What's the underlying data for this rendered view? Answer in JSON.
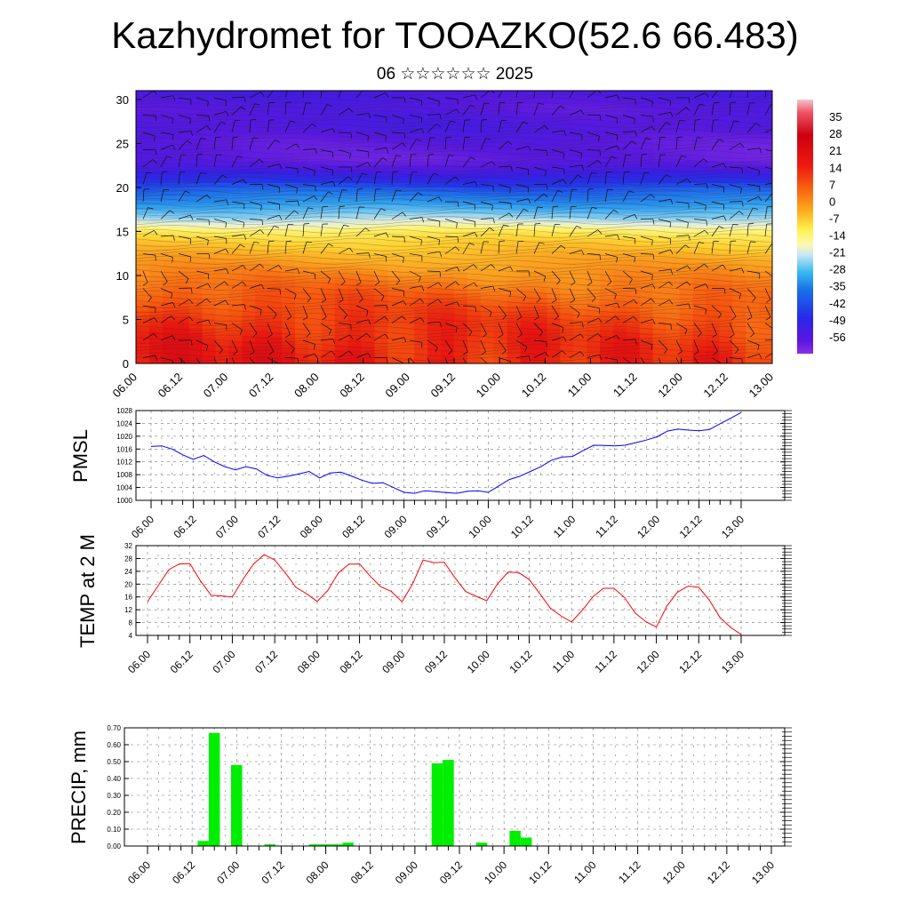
{
  "header": {
    "title": "Kazhydromet for TOOAZKO(52.6 66.483)",
    "subtitle": "06 ☆☆☆☆☆☆ 2025"
  },
  "time_labels": [
    "06.00",
    "06.12",
    "07.00",
    "07.12",
    "08.00",
    "08.12",
    "09.00",
    "09.12",
    "10.00",
    "10.12",
    "11.00",
    "11.12",
    "12.00",
    "12.12",
    "13.00"
  ],
  "chart_data": [
    {
      "type": "heatmap",
      "title": "",
      "xlabel": "",
      "ylabel": "",
      "x_tick_labels": [
        "06.00",
        "06.12",
        "07.00",
        "07.12",
        "08.00",
        "08.12",
        "09.00",
        "09.12",
        "10.00",
        "10.12",
        "11.00",
        "11.12",
        "12.00",
        "12.12",
        "13.00"
      ],
      "ylim": [
        0,
        31
      ],
      "y_ticks": [
        0,
        5,
        10,
        15,
        20,
        25,
        30
      ],
      "colorbar_ticks": [
        35,
        28,
        21,
        14,
        7,
        0,
        -7,
        -14,
        -21,
        -28,
        -35,
        -42,
        -49,
        -56
      ],
      "colorbar_range": [
        -63,
        42
      ],
      "approx_temperature_profile": {
        "level": [
          0,
          2,
          5,
          8,
          10,
          12,
          14,
          15,
          16,
          17,
          18,
          20,
          21,
          22,
          23,
          25,
          27,
          29,
          31
        ],
        "value": [
          22,
          21,
          18,
          13,
          9,
          5,
          0,
          -5,
          -14,
          -21,
          -28,
          -38,
          -45,
          -52,
          -57,
          -56,
          -53,
          -55,
          -52
        ]
      },
      "overlay": "wind barbs",
      "colors": {
        "warm": "#e8101a",
        "cold": "#5018e0"
      }
    },
    {
      "type": "line",
      "title": "",
      "ylabel": "PMSL",
      "x_tick_labels": [
        "06.00",
        "06.12",
        "07.00",
        "07.12",
        "08.00",
        "08.12",
        "09.00",
        "09.12",
        "10.00",
        "10.12",
        "11.00",
        "11.12",
        "12.00",
        "12.12",
        "13.00"
      ],
      "ylim": [
        1000,
        1028
      ],
      "y_ticks": [
        1000,
        1004,
        1008,
        1012,
        1016,
        1020,
        1024,
        1028
      ],
      "series": [
        {
          "color": "#0000ff",
          "x": [
            0,
            3,
            6,
            9,
            12,
            15,
            18,
            21,
            24,
            27,
            30,
            33,
            36,
            39,
            42,
            45,
            48,
            51,
            54,
            57,
            60,
            63,
            66,
            69,
            72,
            75,
            78,
            81,
            84,
            87,
            90,
            93,
            96,
            99,
            102,
            105,
            108,
            111,
            114,
            117,
            120,
            123,
            126,
            129,
            132,
            135,
            138,
            141,
            144,
            147,
            150,
            153,
            156,
            159,
            162,
            165,
            168
          ],
          "values": [
            1016.8,
            1017,
            1016,
            1014.2,
            1012.8,
            1014,
            1012,
            1010.5,
            1009.5,
            1010.5,
            1009.8,
            1007.8,
            1007,
            1007.5,
            1008.2,
            1009,
            1007,
            1008.5,
            1008.8,
            1007.6,
            1006.3,
            1005.3,
            1005.5,
            1004,
            1002.5,
            1002.2,
            1003,
            1002.7,
            1002.4,
            1002.2,
            1002.8,
            1003,
            1002.5,
            1004.5,
            1006.5,
            1007.5,
            1009,
            1010.5,
            1012.5,
            1013.5,
            1013.7,
            1015.5,
            1017.2,
            1017.1,
            1017,
            1017.2,
            1018,
            1018.8,
            1019.8,
            1021.6,
            1022.2,
            1021.9,
            1021.7,
            1022.1,
            1023.9,
            1025.6,
            1027.4
          ]
        }
      ]
    },
    {
      "type": "line",
      "title": "",
      "ylabel": "TEMP at 2 M",
      "x_tick_labels": [
        "06.00",
        "06.12",
        "07.00",
        "07.12",
        "08.00",
        "08.12",
        "09.00",
        "09.12",
        "10.00",
        "10.12",
        "11.00",
        "11.12",
        "12.00",
        "12.12",
        "13.00"
      ],
      "ylim": [
        4,
        32
      ],
      "y_ticks": [
        4,
        8,
        12,
        16,
        20,
        24,
        28,
        32
      ],
      "series": [
        {
          "color": "#ff0000",
          "x": [
            0,
            6,
            9,
            12,
            15,
            18,
            21,
            24,
            27,
            30,
            33,
            36,
            39,
            42,
            45,
            48,
            51,
            54,
            57,
            60,
            63,
            66,
            69,
            72,
            75,
            78,
            81,
            84,
            87,
            90,
            93,
            96,
            99,
            102,
            105,
            108,
            111,
            114,
            117,
            120,
            123,
            126,
            129,
            132,
            135,
            138,
            141,
            144,
            147,
            150,
            153,
            156,
            159,
            162,
            165,
            168
          ],
          "values": [
            14.5,
            24.5,
            26.3,
            26.4,
            21,
            16.5,
            16.3,
            16,
            21.5,
            26.3,
            29.2,
            27.5,
            23.5,
            19,
            17,
            14.6,
            18,
            23.5,
            26.2,
            26.3,
            22.5,
            19.2,
            17.7,
            14.5,
            20,
            27.5,
            26.7,
            26.8,
            22,
            17.7,
            16.2,
            14.8,
            20,
            23.7,
            23.6,
            21.5,
            17,
            12.5,
            10.1,
            8.2,
            11.8,
            16,
            18.7,
            18.7,
            15.8,
            11,
            8.3,
            6.6,
            13.2,
            17.5,
            19.4,
            19,
            15,
            9.6,
            6.5,
            4.3
          ]
        }
      ]
    },
    {
      "type": "bar",
      "title": "",
      "ylabel": "PRECIP, mm",
      "x_tick_labels": [
        "06.00",
        "06.12",
        "07.00",
        "07.12",
        "08.00",
        "08.12",
        "09.00",
        "09.12",
        "10.00",
        "10.12",
        "11.00",
        "11.12",
        "12.00",
        "12.12",
        "13.00"
      ],
      "ylim": [
        0,
        0.7
      ],
      "y_ticks": [
        "0.00",
        "0.10",
        "0.20",
        "0.30",
        "0.40",
        "0.50",
        "0.60",
        "0.70"
      ],
      "bar_color": "#00ee00",
      "series": [
        {
          "x": [
            15,
            18,
            24,
            33,
            45,
            48,
            51,
            54,
            78,
            81,
            90,
            99,
            102
          ],
          "values": [
            0.03,
            0.67,
            0.48,
            0.01,
            0.01,
            0.01,
            0.01,
            0.02,
            0.49,
            0.51,
            0.02,
            0.09,
            0.05
          ]
        }
      ]
    }
  ]
}
